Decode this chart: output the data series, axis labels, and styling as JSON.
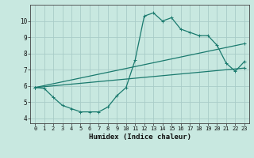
{
  "title": "",
  "xlabel": "Humidex (Indice chaleur)",
  "bg_color": "#c8e8e0",
  "grid_color": "#b0d8d0",
  "line_color": "#1a7a6e",
  "xlim": [
    -0.5,
    23.5
  ],
  "ylim": [
    3.7,
    11.0
  ],
  "xticks": [
    0,
    1,
    2,
    3,
    4,
    5,
    6,
    7,
    8,
    9,
    10,
    11,
    12,
    13,
    14,
    15,
    16,
    17,
    18,
    19,
    20,
    21,
    22,
    23
  ],
  "yticks": [
    4,
    5,
    6,
    7,
    8,
    9,
    10
  ],
  "line1_x": [
    0,
    1,
    2,
    3,
    4,
    5,
    6,
    7,
    8,
    9,
    10,
    11,
    12,
    13,
    14,
    15,
    16,
    17,
    18,
    19,
    20,
    21,
    22,
    23
  ],
  "line1_y": [
    5.9,
    5.85,
    5.3,
    4.8,
    4.6,
    4.4,
    4.4,
    4.4,
    4.7,
    5.4,
    5.9,
    7.6,
    10.3,
    10.5,
    10.0,
    10.2,
    9.5,
    9.3,
    9.1,
    9.1,
    8.5,
    7.4,
    6.9,
    7.5
  ],
  "line2_x": [
    0,
    23
  ],
  "line2_y": [
    5.9,
    8.6
  ],
  "line3_x": [
    0,
    23
  ],
  "line3_y": [
    5.9,
    7.1
  ]
}
